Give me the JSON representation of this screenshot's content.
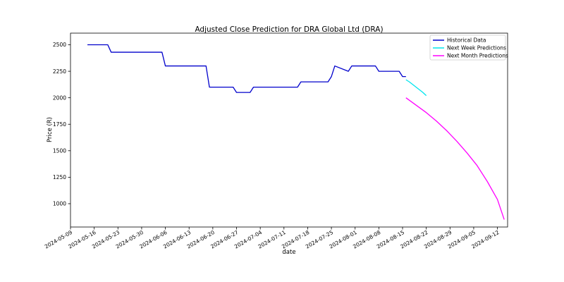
{
  "chart_data": {
    "type": "line",
    "title": "Adjusted Close Prediction for DRA Global Ltd (DRA)",
    "xlabel": "date",
    "ylabel": "Price (R)",
    "x_ticks": [
      "2024-05-09",
      "2024-05-16",
      "2024-05-23",
      "2024-05-30",
      "2024-06-06",
      "2024-06-13",
      "2024-06-20",
      "2024-06-27",
      "2024-07-04",
      "2024-07-11",
      "2024-07-18",
      "2024-07-25",
      "2024-08-01",
      "2024-08-08",
      "2024-08-15",
      "2024-08-22",
      "2024-08-29",
      "2024-09-05",
      "2024-09-12"
    ],
    "y_ticks": [
      1000,
      1250,
      1500,
      1750,
      2000,
      2250,
      2500
    ],
    "xlim": [
      "2024-05-09",
      "2024-09-15"
    ],
    "ylim": [
      780,
      2610
    ],
    "grid": false,
    "legend_position": "top-right",
    "series": [
      {
        "name": "Historical Data",
        "color": "#0000cc",
        "points": [
          [
            "2024-05-14",
            2500
          ],
          [
            "2024-05-20",
            2500
          ],
          [
            "2024-05-21",
            2430
          ],
          [
            "2024-06-05",
            2430
          ],
          [
            "2024-06-06",
            2300
          ],
          [
            "2024-06-18",
            2300
          ],
          [
            "2024-06-19",
            2100
          ],
          [
            "2024-06-26",
            2100
          ],
          [
            "2024-06-27",
            2050
          ],
          [
            "2024-07-01",
            2050
          ],
          [
            "2024-07-02",
            2100
          ],
          [
            "2024-07-15",
            2100
          ],
          [
            "2024-07-16",
            2150
          ],
          [
            "2024-07-24",
            2150
          ],
          [
            "2024-07-25",
            2200
          ],
          [
            "2024-07-26",
            2300
          ],
          [
            "2024-07-30",
            2250
          ],
          [
            "2024-07-31",
            2300
          ],
          [
            "2024-08-07",
            2300
          ],
          [
            "2024-08-08",
            2250
          ],
          [
            "2024-08-14",
            2250
          ],
          [
            "2024-08-15",
            2200
          ],
          [
            "2024-08-16",
            2200
          ]
        ]
      },
      {
        "name": "Next Week Predictions",
        "color": "#00e5ee",
        "points": [
          [
            "2024-08-16",
            2170
          ],
          [
            "2024-08-17",
            2150
          ],
          [
            "2024-08-18",
            2125
          ],
          [
            "2024-08-19",
            2100
          ],
          [
            "2024-08-20",
            2075
          ],
          [
            "2024-08-21",
            2050
          ],
          [
            "2024-08-22",
            2020
          ]
        ]
      },
      {
        "name": "Next Month Predictions",
        "color": "#ff00ff",
        "points": [
          [
            "2024-08-16",
            2000
          ],
          [
            "2024-08-19",
            1930
          ],
          [
            "2024-08-22",
            1860
          ],
          [
            "2024-08-25",
            1780
          ],
          [
            "2024-08-28",
            1690
          ],
          [
            "2024-08-31",
            1590
          ],
          [
            "2024-09-03",
            1480
          ],
          [
            "2024-09-06",
            1360
          ],
          [
            "2024-09-09",
            1210
          ],
          [
            "2024-09-12",
            1040
          ],
          [
            "2024-09-14",
            850
          ]
        ]
      }
    ]
  }
}
